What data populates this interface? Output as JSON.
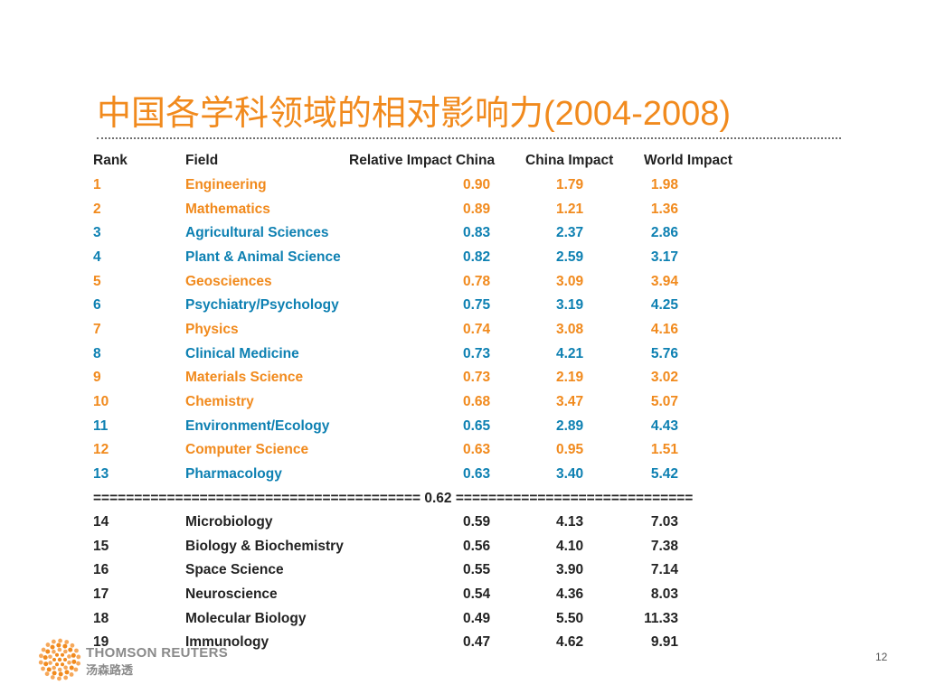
{
  "slide": {
    "title": "中国各学科领域的相对影响力(2004-2008)",
    "page_number": "12"
  },
  "table": {
    "headers": {
      "rank": "Rank",
      "field": "Field",
      "relative_impact": "Relative Impact China",
      "china_impact": "China Impact",
      "world_impact": "World Impact"
    },
    "separator": "======================================== 0.62 =============================",
    "rows": [
      {
        "rank": "1",
        "field": "Engineering",
        "relative": "0.90",
        "china": "1.79",
        "world": "1.98",
        "color": "orange"
      },
      {
        "rank": "2",
        "field": "Mathematics",
        "relative": "0.89",
        "china": "1.21",
        "world": "1.36",
        "color": "orange"
      },
      {
        "rank": "3",
        "field": "Agricultural Sciences",
        "relative": "0.83",
        "china": "2.37",
        "world": "2.86",
        "color": "blue"
      },
      {
        "rank": "4",
        "field": "Plant & Animal Science",
        "relative": "0.82",
        "china": "2.59",
        "world": "3.17",
        "color": "blue"
      },
      {
        "rank": "5",
        "field": "Geosciences",
        "relative": "0.78",
        "china": "3.09",
        "world": "3.94",
        "color": "orange"
      },
      {
        "rank": "6",
        "field": "Psychiatry/Psychology",
        "relative": "0.75",
        "china": "3.19",
        "world": "4.25",
        "color": "blue"
      },
      {
        "rank": "7",
        "field": "Physics",
        "relative": "0.74",
        "china": "3.08",
        "world": "4.16",
        "color": "orange"
      },
      {
        "rank": "8",
        "field": "Clinical Medicine",
        "relative": "0.73",
        "china": "4.21",
        "world": "5.76",
        "color": "blue"
      },
      {
        "rank": "9",
        "field": "Materials Science",
        "relative": "0.73",
        "china": "2.19",
        "world": "3.02",
        "color": "orange"
      },
      {
        "rank": "10",
        "field": "Chemistry",
        "relative": "0.68",
        "china": "3.47",
        "world": "5.07",
        "color": "orange"
      },
      {
        "rank": "11",
        "field": "Environment/Ecology",
        "relative": "0.65",
        "china": "2.89",
        "world": "4.43",
        "color": "blue"
      },
      {
        "rank": "12",
        "field": "Computer Science",
        "relative": "0.63",
        "china": "0.95",
        "world": "1.51",
        "color": "orange"
      },
      {
        "rank": "13",
        "field": "Pharmacology",
        "relative": "0.63",
        "china": "3.40",
        "world": "5.42",
        "color": "blue"
      },
      {
        "rank": "14",
        "field": "Microbiology",
        "relative": "0.59",
        "china": "4.13",
        "world": "7.03",
        "color": "black"
      },
      {
        "rank": "15",
        "field": "Biology & Biochemistry",
        "relative": "0.56",
        "china": "4.10",
        "world": "7.38",
        "color": "black"
      },
      {
        "rank": "16",
        "field": "Space Science",
        "relative": "0.55",
        "china": "3.90",
        "world": "7.14",
        "color": "black"
      },
      {
        "rank": "17",
        "field": "Neuroscience",
        "relative": "0.54",
        "china": "4.36",
        "world": "8.03",
        "color": "black"
      },
      {
        "rank": "18",
        "field": "Molecular Biology",
        "relative": "0.49",
        "china": "5.50",
        "world": "11.33",
        "color": "black"
      },
      {
        "rank": "19",
        "field": "Immunology",
        "relative": "0.47",
        "china": "4.62",
        "world": "9.91",
        "color": "black"
      }
    ]
  },
  "footer": {
    "brand_en": "THOMSON REUTERS",
    "brand_cn": "汤森路透"
  },
  "colors": {
    "orange": "#f18a1d",
    "blue": "#0d80b2",
    "text": "#222222",
    "brand_gray": "#8a8a8a"
  }
}
